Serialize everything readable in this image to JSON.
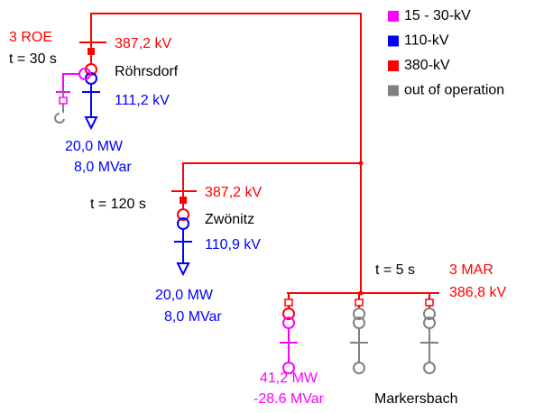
{
  "legend": [
    {
      "label": "15 - 30-kV",
      "color": "#ff00ff"
    },
    {
      "label": "110-kV",
      "color": "#0000ff"
    },
    {
      "label": "380-kV",
      "color": "#ff0000"
    },
    {
      "label": "out of operation",
      "color": "#808080"
    }
  ],
  "stations": [
    {
      "code": "3 ROE",
      "time": "t = 30 s",
      "name": "Röhrsdorf",
      "voltage_hv": "387,2 kV",
      "voltage_lv": "111,2 kV",
      "load": [
        "20,0 MW",
        "8,0 MVar"
      ]
    },
    {
      "time": "t = 120 s",
      "name": "Zwönitz",
      "voltage_hv": "387,2 kV",
      "voltage_lv": "110,9 kV",
      "load": [
        "20,0 MW",
        "8,0 MVar"
      ]
    },
    {
      "code": "3 MAR",
      "time": "t = 5 s",
      "name": "Markersbach",
      "voltage_hv": "386,8 kV",
      "generation": [
        "41,2 MW",
        "-28.6 MVar"
      ]
    }
  ]
}
